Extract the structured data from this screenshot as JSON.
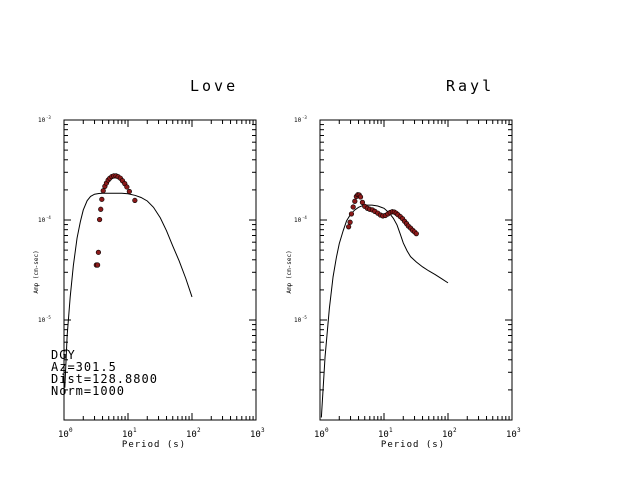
{
  "info": {
    "station": "DGY",
    "azimuth": "Az=301.5",
    "distance": "Dist=128.8800",
    "norm": "Norm=1000"
  },
  "colors": {
    "curve": "#000000",
    "marker_fill": "#8b1a1a",
    "marker_edge": "#000000",
    "axes": "#000000"
  },
  "chart_data": [
    {
      "type": "scatter",
      "title": "Love",
      "xlabel": "Period (s)",
      "ylabel": "Amp (cm-sec)",
      "xscale": "log",
      "yscale": "log",
      "xlim": [
        1,
        1000
      ],
      "ylim": [
        1e-06,
        0.001
      ],
      "xticks": [
        {
          "base": "10",
          "exp": "0"
        },
        {
          "base": "10",
          "exp": "1"
        },
        {
          "base": "10",
          "exp": "2"
        },
        {
          "base": "10",
          "exp": "3"
        }
      ],
      "yticks": [
        {
          "base": "10",
          "exp": "-5"
        },
        {
          "base": "10",
          "exp": "-4"
        },
        {
          "base": "10",
          "exp": "-3"
        }
      ],
      "grid": false,
      "series": [
        {
          "kind": "line",
          "points": [
            [
              1.03,
              2.1e-06
            ],
            [
              1.12,
              7e-06
            ],
            [
              1.25,
              1.7e-05
            ],
            [
              1.4,
              3.5e-05
            ],
            [
              1.6,
              6.6e-05
            ],
            [
              1.8,
              9.6e-05
            ],
            [
              2.0,
              0.000126
            ],
            [
              2.3,
              0.000156
            ],
            [
              2.6,
              0.000172
            ],
            [
              3.0,
              0.000181
            ],
            [
              3.5,
              0.000184
            ],
            [
              4.0,
              0.000185
            ],
            [
              5.0,
              0.000185
            ],
            [
              6.0,
              0.000185
            ],
            [
              8.0,
              0.000185
            ],
            [
              10.0,
              0.000183
            ],
            [
              13.0,
              0.000176
            ],
            [
              16.0,
              0.000168
            ],
            [
              20.0,
              0.000155
            ],
            [
              25.0,
              0.000134
            ],
            [
              32.0,
              0.000105
            ],
            [
              40.0,
              7.8e-05
            ],
            [
              50.0,
              5.5e-05
            ],
            [
              63.0,
              3.9e-05
            ],
            [
              80.0,
              2.6e-05
            ],
            [
              100.0,
              1.7e-05
            ]
          ]
        },
        {
          "kind": "markers",
          "points": [
            [
              3.2,
              3.55e-05
            ],
            [
              3.35,
              3.55e-05
            ],
            [
              3.45,
              4.75e-05
            ],
            [
              3.6,
              0.000101
            ],
            [
              3.75,
              0.000128
            ],
            [
              3.9,
              0.000161
            ],
            [
              4.1,
              0.000196
            ],
            [
              4.35,
              0.000217
            ],
            [
              4.6,
              0.000234
            ],
            [
              4.9,
              0.000251
            ],
            [
              5.2,
              0.000262
            ],
            [
              5.6,
              0.000272
            ],
            [
              6.0,
              0.000276
            ],
            [
              6.5,
              0.000276
            ],
            [
              7.0,
              0.000271
            ],
            [
              7.6,
              0.000262
            ],
            [
              8.2,
              0.000247
            ],
            [
              8.9,
              0.000231
            ],
            [
              9.6,
              0.000214
            ],
            [
              10.5,
              0.000193
            ],
            [
              12.8,
              0.000157
            ]
          ]
        }
      ]
    },
    {
      "type": "scatter",
      "title": "Rayl",
      "xlabel": "Period (s)",
      "ylabel": "Amp (cm-sec)",
      "xscale": "log",
      "yscale": "log",
      "xlim": [
        1,
        1000
      ],
      "ylim": [
        1e-06,
        0.001
      ],
      "xticks": [
        {
          "base": "10",
          "exp": "0"
        },
        {
          "base": "10",
          "exp": "1"
        },
        {
          "base": "10",
          "exp": "2"
        },
        {
          "base": "10",
          "exp": "3"
        }
      ],
      "yticks": [
        {
          "base": "10",
          "exp": "-5"
        },
        {
          "base": "10",
          "exp": "-4"
        },
        {
          "base": "10",
          "exp": "-3"
        }
      ],
      "grid": false,
      "series": [
        {
          "kind": "line",
          "points": [
            [
              1.05,
              1.06e-06
            ],
            [
              1.2,
              4.3e-06
            ],
            [
              1.4,
              1.3e-05
            ],
            [
              1.6,
              2.7e-05
            ],
            [
              1.8,
              4.2e-05
            ],
            [
              2.0,
              5.8e-05
            ],
            [
              2.3,
              7.8e-05
            ],
            [
              2.6,
              9.8e-05
            ],
            [
              3.0,
              0.000114
            ],
            [
              3.5,
              0.000126
            ],
            [
              4.0,
              0.000134
            ],
            [
              4.6,
              0.000139
            ],
            [
              5.5,
              0.000141
            ],
            [
              6.5,
              0.000141
            ],
            [
              8.0,
              0.000138
            ],
            [
              10.0,
              0.000131
            ],
            [
              12.0,
              0.000118
            ],
            [
              14.0,
              0.000104
            ],
            [
              16.0,
              8.9e-05
            ],
            [
              18.0,
              7.2e-05
            ],
            [
              20.0,
              5.9e-05
            ],
            [
              23.0,
              4.9e-05
            ],
            [
              26.0,
              4.3e-05
            ],
            [
              32.0,
              3.8e-05
            ],
            [
              40.0,
              3.4e-05
            ],
            [
              50.0,
              3.1e-05
            ],
            [
              63.0,
              2.85e-05
            ],
            [
              80.0,
              2.58e-05
            ],
            [
              100.0,
              2.35e-05
            ]
          ]
        },
        {
          "kind": "markers",
          "points": [
            [
              2.8,
              8.55e-05
            ],
            [
              2.95,
              9.5e-05
            ],
            [
              3.1,
              0.000115
            ],
            [
              3.3,
              0.000135
            ],
            [
              3.5,
              0.000154
            ],
            [
              3.7,
              0.000172
            ],
            [
              3.9,
              0.000179
            ],
            [
              4.1,
              0.000178
            ],
            [
              4.3,
              0.00017
            ],
            [
              4.6,
              0.00015
            ],
            [
              5.0,
              0.000137
            ],
            [
              5.5,
              0.000131
            ],
            [
              6.0,
              0.000128
            ],
            [
              6.6,
              0.000126
            ],
            [
              7.2,
              0.000122
            ],
            [
              8.0,
              0.000117
            ],
            [
              8.8,
              0.000112
            ],
            [
              9.6,
              0.00011
            ],
            [
              10.5,
              0.000111
            ],
            [
              11.5,
              0.000115
            ],
            [
              12.5,
              0.000119
            ],
            [
              13.5,
              0.000121
            ],
            [
              14.5,
              0.00012
            ],
            [
              15.5,
              0.000117
            ],
            [
              16.5,
              0.000113
            ],
            [
              18.0,
              0.000108
            ],
            [
              19.5,
              0.000103
            ],
            [
              21.0,
              9.7e-05
            ],
            [
              22.5,
              9.2e-05
            ],
            [
              24.0,
              8.7e-05
            ],
            [
              26.0,
              8.3e-05
            ],
            [
              28.0,
              7.9e-05
            ],
            [
              30.0,
              7.6e-05
            ],
            [
              32.0,
              7.3e-05
            ]
          ]
        }
      ]
    }
  ]
}
